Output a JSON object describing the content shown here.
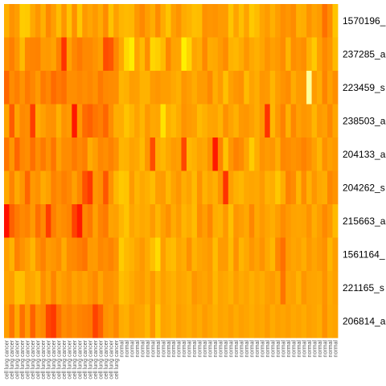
{
  "chart_data": {
    "type": "heatmap",
    "title": "",
    "xlabel": "",
    "ylabel": "",
    "rows": [
      "1570196_",
      "237285_a",
      "223459_s",
      "238503_a",
      "204133_a",
      "204262_s",
      "215663_a",
      "1561164_",
      "221165_s",
      "206814_a"
    ],
    "columns": [
      "cell lung cancer",
      "cell lung cancer",
      "cell lung cancer",
      "cell lung cancer",
      "cell lung cancer",
      "cell lung cancer",
      "cell lung cancer",
      "cell lung cancer",
      "cell lung cancer",
      "cell lung cancer",
      "cell lung cancer",
      "cell lung cancer",
      "cell lung cancer",
      "cell lung cancer",
      "cell lung cancer",
      "cell lung cancer",
      "cell lung cancer",
      "cell lung cancer",
      "cell lung cancer",
      "cell lung cancer",
      "cell lung cancer",
      "cell lung cancer",
      "normal",
      "normal",
      "normal",
      "normal",
      "normal",
      "normal",
      "normal",
      "normal",
      "normal",
      "normal",
      "normal",
      "normal",
      "normal",
      "normal",
      "normal",
      "normal",
      "normal",
      "normal",
      "normal",
      "normal",
      "normal",
      "normal",
      "normal",
      "normal",
      "normal",
      "normal",
      "normal",
      "normal",
      "normal",
      "normal",
      "normal",
      "normal",
      "normal",
      "normal",
      "normal",
      "normal",
      "normal",
      "normal",
      "normal",
      "normal",
      "normal",
      "normal"
    ],
    "color_scale": [
      "#ff0000",
      "#ff7f00",
      "#ffbf00",
      "#ffff00",
      "#ffffff"
    ],
    "values": [
      [
        0.44,
        0.33,
        0.37,
        0.55,
        0.54,
        0.41,
        0.34,
        0.44,
        0.29,
        0.37,
        0.49,
        0.34,
        0.51,
        0.32,
        0.53,
        0.35,
        0.4,
        0.35,
        0.42,
        0.3,
        0.51,
        0.38,
        0.46,
        0.48,
        0.47,
        0.35,
        0.29,
        0.37,
        0.43,
        0.3,
        0.42,
        0.52,
        0.38,
        0.33,
        0.42,
        0.45,
        0.5,
        0.49,
        0.32,
        0.34,
        0.33,
        0.36,
        0.36,
        0.52,
        0.39,
        0.5,
        0.39,
        0.54,
        0.49,
        0.4,
        0.36,
        0.44,
        0.37,
        0.31,
        0.34,
        0.3,
        0.44,
        0.43,
        0.33,
        0.39,
        0.36,
        0.22,
        0.3,
        0.52
      ],
      [
        0.32,
        0.25,
        0.34,
        0.48,
        0.28,
        0.27,
        0.26,
        0.36,
        0.35,
        0.39,
        0.26,
        0.1,
        0.38,
        0.28,
        0.24,
        0.29,
        0.29,
        0.33,
        0.37,
        0.15,
        0.17,
        0.28,
        0.41,
        0.6,
        0.68,
        0.39,
        0.48,
        0.31,
        0.59,
        0.56,
        0.48,
        0.28,
        0.39,
        0.4,
        0.69,
        0.58,
        0.4,
        0.43,
        0.29,
        0.42,
        0.41,
        0.36,
        0.3,
        0.45,
        0.47,
        0.42,
        0.34,
        0.41,
        0.44,
        0.4,
        0.33,
        0.38,
        0.35,
        0.3,
        0.46,
        0.31,
        0.34,
        0.31,
        0.44,
        0.54,
        0.38,
        0.29,
        0.34,
        0.48
      ],
      [
        0.2,
        0.3,
        0.25,
        0.33,
        0.24,
        0.28,
        0.35,
        0.24,
        0.28,
        0.21,
        0.24,
        0.22,
        0.31,
        0.31,
        0.28,
        0.31,
        0.28,
        0.32,
        0.24,
        0.29,
        0.3,
        0.31,
        0.46,
        0.44,
        0.37,
        0.38,
        0.45,
        0.45,
        0.36,
        0.34,
        0.37,
        0.37,
        0.41,
        0.44,
        0.34,
        0.37,
        0.42,
        0.36,
        0.36,
        0.29,
        0.43,
        0.36,
        0.5,
        0.38,
        0.34,
        0.32,
        0.48,
        0.39,
        0.43,
        0.34,
        0.35,
        0.46,
        0.37,
        0.33,
        0.3,
        0.42,
        0.36,
        0.35,
        0.9,
        0.36,
        0.42,
        0.27,
        0.38,
        0.31
      ],
      [
        0.39,
        0.18,
        0.39,
        0.29,
        0.31,
        0.12,
        0.42,
        0.38,
        0.33,
        0.32,
        0.44,
        0.33,
        0.36,
        0.05,
        0.34,
        0.21,
        0.19,
        0.23,
        0.25,
        0.2,
        0.31,
        0.43,
        0.43,
        0.52,
        0.46,
        0.39,
        0.46,
        0.35,
        0.41,
        0.4,
        0.64,
        0.44,
        0.48,
        0.42,
        0.33,
        0.36,
        0.38,
        0.48,
        0.44,
        0.4,
        0.39,
        0.45,
        0.32,
        0.39,
        0.44,
        0.35,
        0.34,
        0.38,
        0.43,
        0.35,
        0.1,
        0.47,
        0.35,
        0.26,
        0.44,
        0.28,
        0.38,
        0.34,
        0.36,
        0.46,
        0.35,
        0.38,
        0.29,
        0.4
      ],
      [
        0.23,
        0.34,
        0.2,
        0.28,
        0.31,
        0.22,
        0.31,
        0.24,
        0.32,
        0.23,
        0.38,
        0.3,
        0.3,
        0.24,
        0.29,
        0.25,
        0.42,
        0.37,
        0.28,
        0.31,
        0.26,
        0.32,
        0.46,
        0.45,
        0.39,
        0.41,
        0.48,
        0.34,
        0.15,
        0.43,
        0.47,
        0.41,
        0.36,
        0.38,
        0.14,
        0.47,
        0.44,
        0.39,
        0.41,
        0.32,
        0.05,
        0.27,
        0.51,
        0.34,
        0.26,
        0.3,
        0.4,
        0.55,
        0.43,
        0.33,
        0.36,
        0.34,
        0.43,
        0.28,
        0.3,
        0.33,
        0.31,
        0.26,
        0.31,
        0.38,
        0.46,
        0.32,
        0.38,
        0.35
      ],
      [
        0.41,
        0.27,
        0.41,
        0.34,
        0.2,
        0.35,
        0.32,
        0.42,
        0.38,
        0.26,
        0.31,
        0.25,
        0.29,
        0.38,
        0.28,
        0.16,
        0.11,
        0.34,
        0.31,
        0.17,
        0.33,
        0.47,
        0.54,
        0.52,
        0.36,
        0.46,
        0.41,
        0.44,
        0.49,
        0.37,
        0.36,
        0.47,
        0.39,
        0.34,
        0.43,
        0.39,
        0.48,
        0.33,
        0.45,
        0.4,
        0.44,
        0.33,
        0.1,
        0.38,
        0.44,
        0.47,
        0.41,
        0.4,
        0.41,
        0.36,
        0.45,
        0.43,
        0.53,
        0.43,
        0.26,
        0.3,
        0.46,
        0.3,
        0.44,
        0.34,
        0.41,
        0.43,
        0.28,
        0.33
      ],
      [
        0.03,
        0.19,
        0.24,
        0.29,
        0.26,
        0.35,
        0.22,
        0.29,
        0.12,
        0.25,
        0.33,
        0.3,
        0.27,
        0.13,
        0.05,
        0.28,
        0.24,
        0.38,
        0.27,
        0.24,
        0.39,
        0.38,
        0.46,
        0.52,
        0.4,
        0.44,
        0.41,
        0.43,
        0.36,
        0.46,
        0.38,
        0.32,
        0.42,
        0.36,
        0.46,
        0.42,
        0.49,
        0.31,
        0.37,
        0.28,
        0.43,
        0.45,
        0.35,
        0.5,
        0.34,
        0.37,
        0.41,
        0.28,
        0.41,
        0.35,
        0.4,
        0.43,
        0.37,
        0.3,
        0.35,
        0.39,
        0.4,
        0.39,
        0.33,
        0.43,
        0.37,
        0.29,
        0.35,
        0.48
      ],
      [
        0.38,
        0.45,
        0.26,
        0.33,
        0.38,
        0.46,
        0.32,
        0.26,
        0.36,
        0.34,
        0.3,
        0.42,
        0.3,
        0.29,
        0.25,
        0.23,
        0.35,
        0.36,
        0.28,
        0.31,
        0.27,
        0.33,
        0.55,
        0.48,
        0.45,
        0.4,
        0.35,
        0.42,
        0.5,
        0.61,
        0.37,
        0.47,
        0.49,
        0.4,
        0.43,
        0.32,
        0.45,
        0.4,
        0.38,
        0.35,
        0.49,
        0.36,
        0.36,
        0.48,
        0.32,
        0.46,
        0.41,
        0.34,
        0.39,
        0.33,
        0.41,
        0.47,
        0.28,
        0.22,
        0.36,
        0.4,
        0.38,
        0.43,
        0.35,
        0.4,
        0.36,
        0.32,
        0.46,
        0.37
      ],
      [
        0.4,
        0.37,
        0.5,
        0.5,
        0.39,
        0.41,
        0.46,
        0.31,
        0.39,
        0.27,
        0.4,
        0.36,
        0.32,
        0.39,
        0.35,
        0.39,
        0.34,
        0.29,
        0.4,
        0.32,
        0.33,
        0.36,
        0.5,
        0.47,
        0.42,
        0.38,
        0.36,
        0.42,
        0.35,
        0.46,
        0.38,
        0.42,
        0.45,
        0.39,
        0.41,
        0.44,
        0.34,
        0.38,
        0.4,
        0.36,
        0.47,
        0.39,
        0.41,
        0.45,
        0.37,
        0.42,
        0.39,
        0.44,
        0.4,
        0.43,
        0.38,
        0.36,
        0.41,
        0.23,
        0.39,
        0.38,
        0.45,
        0.34,
        0.39,
        0.4,
        0.41,
        0.33,
        0.42,
        0.38
      ],
      [
        0.37,
        0.23,
        0.41,
        0.22,
        0.36,
        0.19,
        0.32,
        0.29,
        0.14,
        0.11,
        0.22,
        0.3,
        0.26,
        0.31,
        0.27,
        0.25,
        0.24,
        0.13,
        0.19,
        0.32,
        0.35,
        0.28,
        0.42,
        0.44,
        0.36,
        0.39,
        0.4,
        0.47,
        0.34,
        0.53,
        0.39,
        0.41,
        0.45,
        0.37,
        0.4,
        0.43,
        0.38,
        0.42,
        0.36,
        0.4,
        0.44,
        0.39,
        0.41,
        0.37,
        0.42,
        0.38,
        0.4,
        0.43,
        0.39,
        0.41,
        0.36,
        0.42,
        0.38,
        0.4,
        0.37,
        0.41,
        0.39,
        0.42,
        0.38,
        0.4,
        0.43,
        0.32,
        0.41,
        0.39
      ]
    ]
  }
}
